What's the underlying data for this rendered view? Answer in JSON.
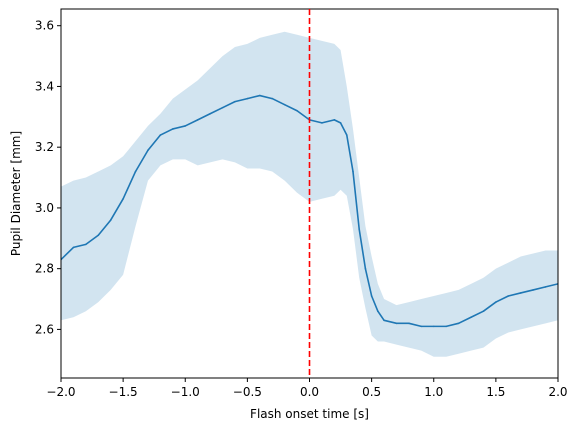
{
  "chart_data": {
    "type": "line",
    "title": "",
    "xlabel": "Flash onset time [s]",
    "ylabel": "Pupil Diameter [mm]",
    "xlim": [
      -2.0,
      2.0
    ],
    "ylim": [
      2.44,
      3.655
    ],
    "xticks": [
      -2.0,
      -1.5,
      -1.0,
      -0.5,
      0.0,
      0.5,
      1.0,
      1.5,
      2.0
    ],
    "xtick_labels": [
      "−2.0",
      "−1.5",
      "−1.0",
      "−0.5",
      "0.0",
      "0.5",
      "1.0",
      "1.5",
      "2.0"
    ],
    "yticks": [
      2.6,
      2.8,
      3.0,
      3.2,
      3.4,
      3.6
    ],
    "ytick_labels": [
      "2.6",
      "2.8",
      "3.0",
      "3.2",
      "3.4",
      "3.6"
    ],
    "grid": false,
    "legend": "none",
    "line_color": "#1f77b4",
    "band_color": "#1f77b4",
    "band_opacity": 0.2,
    "vline": {
      "x": 0.0,
      "color": "#ff0000",
      "style": "dashed"
    },
    "series": [
      {
        "x": [
          -2.0,
          -1.9,
          -1.8,
          -1.7,
          -1.6,
          -1.5,
          -1.4,
          -1.3,
          -1.2,
          -1.1,
          -1.0,
          -0.9,
          -0.8,
          -0.7,
          -0.6,
          -0.5,
          -0.4,
          -0.3,
          -0.2,
          -0.1,
          0.0,
          0.1,
          0.2,
          0.25,
          0.3,
          0.35,
          0.4,
          0.45,
          0.5,
          0.55,
          0.6,
          0.7,
          0.8,
          0.9,
          1.0,
          1.1,
          1.2,
          1.3,
          1.4,
          1.5,
          1.6,
          1.7,
          1.8,
          1.9,
          2.0
        ],
        "mean": [
          2.83,
          2.87,
          2.88,
          2.91,
          2.96,
          3.03,
          3.12,
          3.19,
          3.24,
          3.26,
          3.27,
          3.29,
          3.31,
          3.33,
          3.35,
          3.36,
          3.37,
          3.36,
          3.34,
          3.32,
          3.29,
          3.28,
          3.29,
          3.28,
          3.24,
          3.12,
          2.93,
          2.8,
          2.71,
          2.66,
          2.63,
          2.62,
          2.62,
          2.61,
          2.61,
          2.61,
          2.62,
          2.64,
          2.66,
          2.69,
          2.71,
          2.72,
          2.73,
          2.74,
          2.75
        ],
        "upper": [
          3.07,
          3.09,
          3.1,
          3.12,
          3.14,
          3.17,
          3.22,
          3.27,
          3.31,
          3.36,
          3.39,
          3.42,
          3.46,
          3.5,
          3.53,
          3.54,
          3.56,
          3.57,
          3.58,
          3.57,
          3.56,
          3.55,
          3.54,
          3.52,
          3.4,
          3.26,
          3.1,
          2.94,
          2.84,
          2.75,
          2.7,
          2.68,
          2.69,
          2.7,
          2.71,
          2.72,
          2.73,
          2.75,
          2.77,
          2.8,
          2.82,
          2.84,
          2.85,
          2.86,
          2.86
        ],
        "lower": [
          2.63,
          2.64,
          2.66,
          2.69,
          2.73,
          2.78,
          2.94,
          3.09,
          3.14,
          3.16,
          3.16,
          3.14,
          3.15,
          3.16,
          3.15,
          3.13,
          3.13,
          3.12,
          3.09,
          3.05,
          3.02,
          3.03,
          3.04,
          3.06,
          3.04,
          2.93,
          2.77,
          2.67,
          2.58,
          2.56,
          2.56,
          2.55,
          2.54,
          2.53,
          2.51,
          2.51,
          2.52,
          2.53,
          2.54,
          2.57,
          2.59,
          2.6,
          2.61,
          2.62,
          2.63
        ]
      }
    ]
  }
}
